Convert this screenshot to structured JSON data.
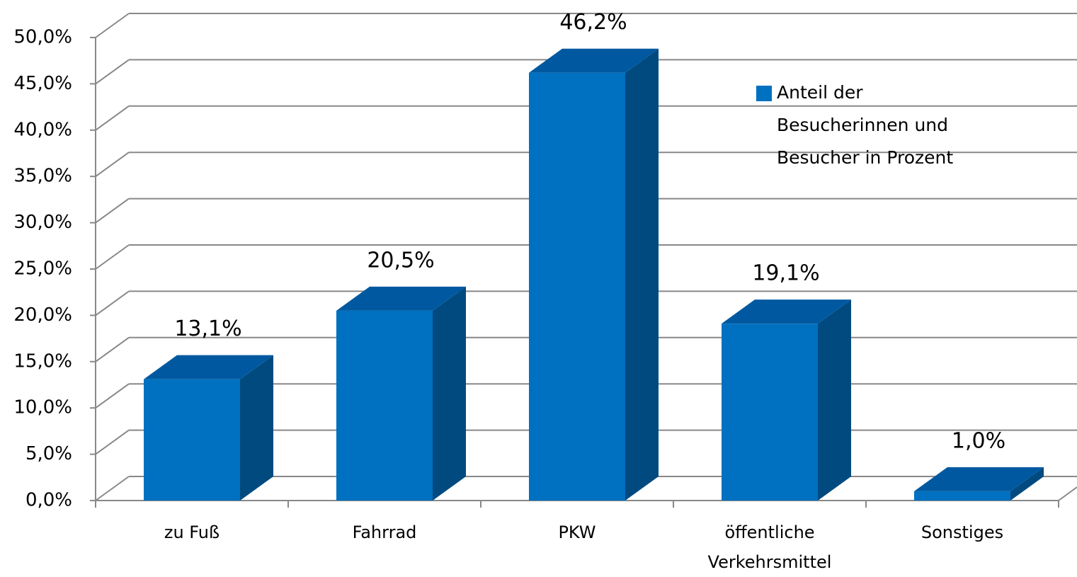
{
  "chart_data": {
    "type": "bar",
    "categories": [
      "zu Fuß",
      "Fahrrad",
      "PKW",
      "öffentliche Verkehrsmittel",
      "Sonstiges"
    ],
    "series": [
      {
        "name": "Anteil der Besucherinnen und Besucher in Prozent",
        "color": "#0070c0",
        "values": [
          13.1,
          20.5,
          46.2,
          19.1,
          1.0
        ],
        "value_labels": [
          "13,1%",
          "20,5%",
          "46,2%",
          "19,1%",
          "1,0%"
        ]
      }
    ],
    "ylim": [
      0,
      50
    ],
    "yticks": [
      {
        "value": 0,
        "label": "0,0%"
      },
      {
        "value": 5,
        "label": "5,0%"
      },
      {
        "value": 10,
        "label": "10,0%"
      },
      {
        "value": 15,
        "label": "15,0%"
      },
      {
        "value": 20,
        "label": "20,0%"
      },
      {
        "value": 25,
        "label": "25,0%"
      },
      {
        "value": 30,
        "label": "30,0%"
      },
      {
        "value": 35,
        "label": "35,0%"
      },
      {
        "value": 40,
        "label": "40,0%"
      },
      {
        "value": 45,
        "label": "45,0%"
      },
      {
        "value": 50,
        "label": "50,0%"
      }
    ],
    "grid": true,
    "legend": "right"
  }
}
